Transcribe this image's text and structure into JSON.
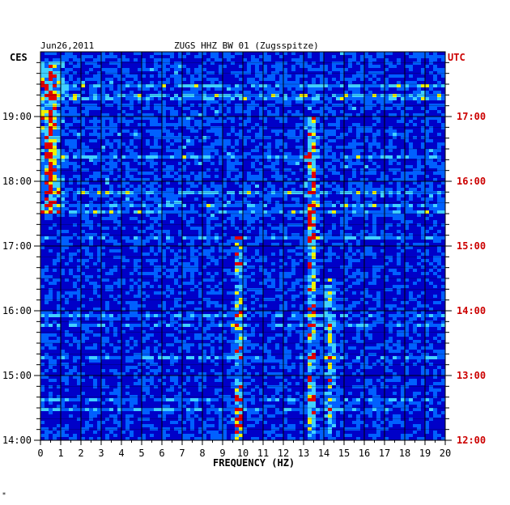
{
  "chart_data": {
    "type": "heatmap",
    "title_date": "Jun26,2011",
    "title": "ZUGS HHZ BW 01 (Zugsspitze)",
    "xlabel": "FREQUENCY (HZ)",
    "xlim": [
      0,
      20
    ],
    "x_ticks": [
      "0",
      "1",
      "2",
      "3",
      "4",
      "5",
      "6",
      "7",
      "8",
      "9",
      "10",
      "11",
      "12",
      "13",
      "14",
      "15",
      "16",
      "17",
      "18",
      "19",
      "20"
    ],
    "left_axis_label": "CES",
    "right_axis_label": "UTC",
    "left_ticks": [
      "19:00",
      "18:00",
      "17:00",
      "16:00",
      "15:00",
      "14:00"
    ],
    "right_ticks": [
      "17:00",
      "16:00",
      "15:00",
      "14:00",
      "13:00",
      "12:00"
    ],
    "time_range_ces": [
      "14:00",
      "19:50"
    ],
    "colors": {
      "background": "#0000c8",
      "low": "#0018e0",
      "mid": "#0060ff",
      "cyan": "#40d0ff",
      "yellow": "#f0f000",
      "red": "#e00000",
      "utc_text": "#cc0000",
      "grid": "#000000"
    },
    "energy_bands_hz": [
      {
        "freq": 0.5,
        "period_ces": "17:30-19:50",
        "level": "high"
      },
      {
        "freq": 9.8,
        "period_ces": "14:00-17:10",
        "level": "high"
      },
      {
        "freq": 13.4,
        "period_ces": "14:00-19:00",
        "level": "high"
      },
      {
        "freq": 14.3,
        "period_ces": "14:00-16:30",
        "level": "medium"
      }
    ]
  },
  "footer_mark": "*"
}
